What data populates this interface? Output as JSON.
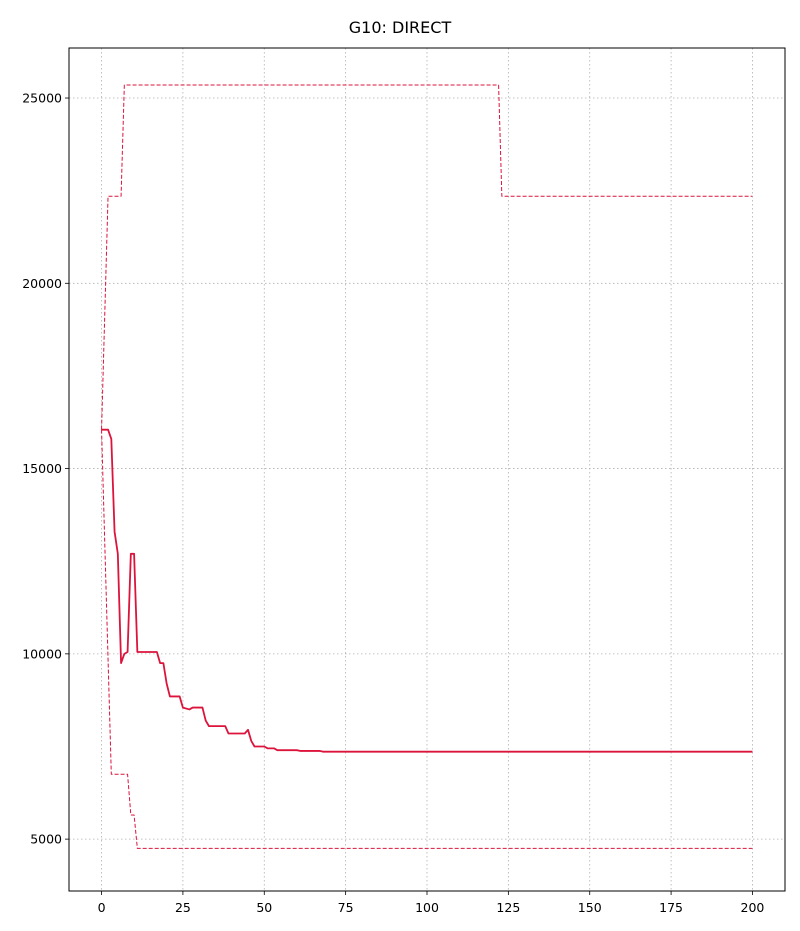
{
  "chart_data": {
    "type": "line",
    "title": "G10: DIRECT",
    "xlabel": "",
    "ylabel": "",
    "xlim": [
      -10,
      210
    ],
    "ylim": [
      3600,
      26350
    ],
    "xticks": [
      0,
      25,
      50,
      75,
      100,
      125,
      150,
      175,
      200
    ],
    "yticks": [
      5000,
      10000,
      15000,
      20000,
      25000
    ],
    "grid": true,
    "color": "#dc143c",
    "series": [
      {
        "style": "solid",
        "points": [
          [
            0,
            16050
          ],
          [
            2,
            16050
          ],
          [
            3,
            15800
          ],
          [
            4,
            13300
          ],
          [
            5,
            12700
          ],
          [
            6,
            9750
          ],
          [
            7,
            10000
          ],
          [
            8,
            10050
          ],
          [
            9,
            12700
          ],
          [
            10,
            12700
          ],
          [
            11,
            10050
          ],
          [
            17,
            10050
          ],
          [
            18,
            9750
          ],
          [
            19,
            9750
          ],
          [
            20,
            9200
          ],
          [
            21,
            8850
          ],
          [
            24,
            8850
          ],
          [
            25,
            8550
          ],
          [
            27,
            8500
          ],
          [
            28,
            8550
          ],
          [
            31,
            8550
          ],
          [
            32,
            8200
          ],
          [
            33,
            8050
          ],
          [
            38,
            8050
          ],
          [
            39,
            7850
          ],
          [
            44,
            7850
          ],
          [
            45,
            7950
          ],
          [
            46,
            7650
          ],
          [
            47,
            7500
          ],
          [
            50,
            7500
          ],
          [
            51,
            7450
          ],
          [
            53,
            7450
          ],
          [
            54,
            7400
          ],
          [
            60,
            7400
          ],
          [
            61,
            7380
          ],
          [
            67,
            7380
          ],
          [
            68,
            7360
          ],
          [
            200,
            7360
          ]
        ]
      },
      {
        "style": "dashed",
        "points": [
          [
            0,
            16050
          ],
          [
            2,
            22350
          ],
          [
            6,
            22350
          ],
          [
            7,
            25350
          ],
          [
            122,
            25350
          ],
          [
            123,
            22350
          ],
          [
            200,
            22350
          ]
        ]
      },
      {
        "style": "dashed",
        "points": [
          [
            0,
            16050
          ],
          [
            3,
            6750
          ],
          [
            8,
            6750
          ],
          [
            9,
            5650
          ],
          [
            10,
            5650
          ],
          [
            11,
            4750
          ],
          [
            200,
            4750
          ]
        ]
      }
    ]
  }
}
